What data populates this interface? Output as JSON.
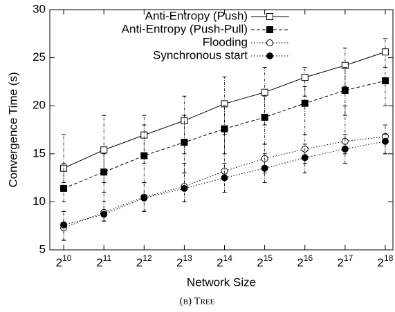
{
  "chart_data": {
    "type": "line",
    "caption": "(b) Tree",
    "xlabel": "Network Size",
    "ylabel": "Convergence Time (s)",
    "xscale": "log2",
    "xlim": [
      806,
      299000
    ],
    "xticks": [
      {
        "value": 1024,
        "label": "2^10"
      },
      {
        "value": 2048,
        "label": "2^11"
      },
      {
        "value": 4096,
        "label": "2^12"
      },
      {
        "value": 8192,
        "label": "2^13"
      },
      {
        "value": 16384,
        "label": "2^14"
      },
      {
        "value": 32768,
        "label": "2^15"
      },
      {
        "value": 65536,
        "label": "2^16"
      },
      {
        "value": 131072,
        "label": "2^17"
      },
      {
        "value": 262144,
        "label": "2^18"
      }
    ],
    "x": [
      1024,
      2048,
      4096,
      8192,
      16384,
      32768,
      65536,
      131072,
      262144
    ],
    "ylim": [
      5,
      30
    ],
    "yticks": [
      5,
      10,
      15,
      20,
      25,
      30
    ],
    "legend": "top",
    "series": [
      {
        "name": "Anti-Entropy (Push)",
        "color": "#000000",
        "line_style": "solid",
        "marker": "square-open",
        "values": [
          13.5,
          15.4,
          16.95,
          18.45,
          20.2,
          21.4,
          22.95,
          24.2,
          25.6
        ],
        "low": [
          12,
          12,
          14,
          15,
          17,
          18,
          21,
          22,
          24
        ],
        "high": [
          17,
          19,
          19,
          21,
          23,
          24,
          24,
          26,
          27
        ]
      },
      {
        "name": "Anti-Entropy (Push-Pull)",
        "color": "#000000",
        "line_style": "dashed",
        "marker": "square-filled",
        "values": [
          11.4,
          13.1,
          14.8,
          16.2,
          17.6,
          18.8,
          20.25,
          21.6,
          22.6
        ],
        "low": [
          10,
          11,
          12,
          13,
          15,
          16,
          17,
          19,
          20
        ],
        "high": [
          14,
          15,
          18,
          19,
          20,
          21,
          22,
          24,
          24
        ]
      },
      {
        "name": "Flooding",
        "color": "#000000",
        "line_style": "dotted",
        "marker": "circle-open",
        "values": [
          7.3,
          8.9,
          10.5,
          11.6,
          13.2,
          14.5,
          15.5,
          16.3,
          16.8
        ],
        "low": [
          6,
          8,
          9,
          10,
          11,
          12,
          13,
          14,
          15
        ],
        "high": [
          9,
          11,
          12,
          13,
          17,
          16,
          17,
          20,
          18
        ]
      },
      {
        "name": "Synchronous start",
        "color": "#000000",
        "line_style": "dotted",
        "marker": "circle-filled",
        "values": [
          7.6,
          8.7,
          10.4,
          11.4,
          12.5,
          13.5,
          14.6,
          15.5,
          16.3
        ],
        "low": [
          6,
          8,
          9,
          10,
          11,
          13,
          14,
          15,
          15
        ],
        "high": [
          9,
          10,
          12,
          14,
          14,
          15,
          16,
          17,
          17
        ]
      }
    ]
  }
}
